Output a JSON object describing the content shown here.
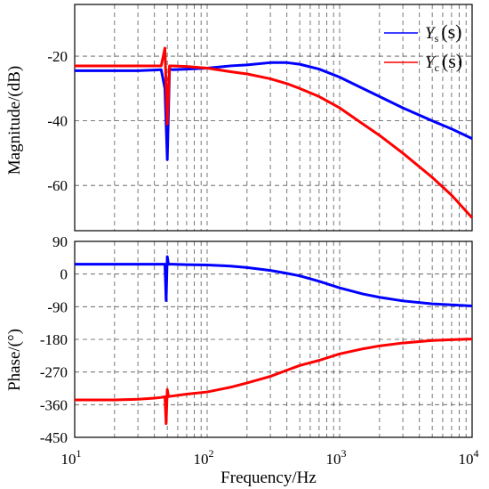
{
  "chart_data": {
    "type": "line",
    "xscale": "log",
    "xlim": [
      10,
      10000
    ],
    "xlabel": "Frequency/Hz",
    "xticks": [
      {
        "value": 10,
        "base": "10",
        "exp": "1"
      },
      {
        "value": 100,
        "base": "10",
        "exp": "2"
      },
      {
        "value": 1000,
        "base": "10",
        "exp": "3"
      },
      {
        "value": 10000,
        "base": "10",
        "exp": "4"
      }
    ],
    "grid": true,
    "legend": {
      "position": "top-right",
      "entries": [
        {
          "series": "Ys",
          "main": "Y",
          "sub": "s",
          "arg": "(s)",
          "color": "#0000ff"
        },
        {
          "series": "Yc",
          "main": "Y",
          "sub": "c",
          "arg": "(s)",
          "color": "#ff0000"
        }
      ]
    },
    "panels": [
      {
        "id": "magnitude",
        "ylabel": "Magnitude/(dB)",
        "ylim": [
          -74,
          -4
        ],
        "yticks": [
          "-20",
          "-40",
          "-60"
        ],
        "ytick_values": [
          -20,
          -40,
          -60
        ],
        "series": [
          {
            "name": "Ys",
            "color": "#0000ff",
            "x": [
              10,
              20,
              30,
              40,
              45,
              48,
              50,
              52,
              55,
              70,
              100,
              150,
              200,
              300,
              400,
              500,
              700,
              1000,
              1500,
              2000,
              3000,
              5000,
              7000,
              10000
            ],
            "y": [
              -24.5,
              -24.5,
              -24.5,
              -24.3,
              -24.2,
              -30,
              -52,
              -24,
              -24.2,
              -24,
              -23.7,
              -23,
              -22.7,
              -22,
              -22,
              -22.5,
              -24,
              -26.5,
              -30,
              -32.5,
              -36,
              -40,
              -42.5,
              -45.5
            ]
          },
          {
            "name": "Yc",
            "color": "#ff0000",
            "x": [
              10,
              20,
              30,
              40,
              45,
              48,
              50,
              52,
              55,
              70,
              100,
              150,
              200,
              300,
              400,
              500,
              700,
              1000,
              1500,
              2000,
              3000,
              5000,
              7000,
              10000
            ],
            "y": [
              -23,
              -23,
              -23,
              -23,
              -23,
              -17.5,
              -41,
              -23,
              -23,
              -23.2,
              -23.7,
              -24.8,
              -25.5,
              -27,
              -28.5,
              -30,
              -32.5,
              -36,
              -41,
              -44.5,
              -50,
              -57.5,
              -63,
              -70
            ]
          }
        ]
      },
      {
        "id": "phase",
        "ylabel": "Phase/(°)",
        "ylim": [
          -450,
          90
        ],
        "yticks": [
          "90",
          "0",
          "-90",
          "-180",
          "-270",
          "-360",
          "-450"
        ],
        "ytick_values": [
          90,
          0,
          -90,
          -180,
          -270,
          -360,
          -450
        ],
        "series": [
          {
            "name": "Ys",
            "color": "#0000ff",
            "x": [
              10,
              20,
              30,
              40,
              45,
              48,
              49,
              50,
              51,
              52,
              55,
              70,
              100,
              150,
              200,
              300,
              400,
              500,
              700,
              1000,
              1500,
              2000,
              3000,
              5000,
              7000,
              10000
            ],
            "y": [
              27,
              27,
              27,
              27,
              27,
              27,
              -73,
              48,
              27,
              27,
              27,
              26,
              25,
              22,
              18,
              10,
              2,
              -5,
              -20,
              -38,
              -55,
              -64,
              -74,
              -82,
              -85,
              -88
            ]
          },
          {
            "name": "Yc",
            "color": "#ff0000",
            "x": [
              10,
              20,
              30,
              40,
              45,
              48,
              49,
              50,
              51,
              52,
              55,
              70,
              100,
              150,
              200,
              300,
              400,
              500,
              700,
              1000,
              1500,
              2000,
              3000,
              5000,
              7000,
              10000
            ],
            "y": [
              -347,
              -347,
              -345,
              -342,
              -340,
              -338,
              -412,
              -318,
              -338,
              -337,
              -336,
              -331,
              -325,
              -312,
              -300,
              -282,
              -265,
              -252,
              -238,
              -220,
              -206,
              -198,
              -190,
              -183,
              -181,
              -179
            ]
          }
        ]
      }
    ]
  }
}
